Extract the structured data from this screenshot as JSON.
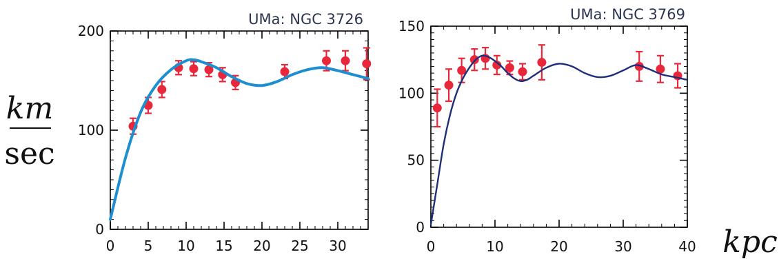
{
  "units": {
    "y_numerator": "km",
    "y_denominator": "sec",
    "x_unit": "kpc"
  },
  "colors": {
    "points": "#e8283a",
    "curve_left": "#1d8fd0",
    "curve_right": "#1e2f7a",
    "axes": "#000000"
  },
  "chart_data": [
    {
      "type": "scatter",
      "title": "UMa: NGC 3726",
      "xlabel": "",
      "ylabel": "",
      "xlim": [
        0,
        34
      ],
      "ylim": [
        0,
        200
      ],
      "xticks": [
        0,
        5,
        10,
        15,
        20,
        25,
        30
      ],
      "yticks": [
        0,
        100,
        200
      ],
      "grid": false,
      "series": [
        {
          "kind": "points_with_errorbars",
          "color": "#e8283a",
          "x": [
            3.0,
            5.0,
            6.8,
            9.0,
            11.0,
            13.0,
            14.8,
            16.5,
            23.0,
            28.5,
            31.0,
            33.8
          ],
          "y": [
            104,
            125,
            141,
            163,
            162,
            161,
            156,
            148,
            159,
            170,
            170,
            167
          ],
          "err": [
            8,
            8,
            8,
            7,
            7,
            7,
            7,
            7,
            7,
            10,
            10,
            16
          ]
        },
        {
          "kind": "curve",
          "color": "#1d8fd0",
          "x": [
            0,
            2,
            4,
            6,
            8,
            10,
            11,
            12,
            14,
            16,
            18,
            20,
            22,
            24,
            26,
            28,
            30,
            32,
            34
          ],
          "y": [
            10,
            72,
            118,
            145,
            161,
            170,
            171,
            169,
            163,
            154,
            147,
            145,
            149,
            156,
            161,
            163,
            160,
            156,
            152
          ]
        }
      ]
    },
    {
      "type": "scatter",
      "title": "UMa: NGC 3769",
      "xlabel": "",
      "ylabel": "",
      "xlim": [
        0,
        40
      ],
      "ylim": [
        0,
        150
      ],
      "xticks": [
        0,
        10,
        20,
        30,
        40
      ],
      "yticks": [
        0,
        50,
        100,
        150
      ],
      "grid": false,
      "series": [
        {
          "kind": "points_with_errorbars",
          "color": "#e8283a",
          "x": [
            1.0,
            2.8,
            4.8,
            6.8,
            8.5,
            10.3,
            12.3,
            14.3,
            17.3,
            32.5,
            35.8,
            38.5
          ],
          "y": [
            89,
            106,
            117,
            125,
            126,
            121,
            119,
            116,
            123,
            120,
            118,
            113
          ],
          "err": [
            14,
            12,
            9,
            8,
            8,
            7,
            5,
            6,
            13,
            11,
            10,
            9
          ]
        },
        {
          "kind": "curve",
          "color": "#1e2f7a",
          "x": [
            0,
            1,
            2,
            3,
            4,
            5,
            6,
            7,
            8,
            9,
            10,
            11,
            12,
            13,
            14,
            15,
            16,
            18,
            20,
            22,
            24,
            26,
            28,
            30,
            32,
            34,
            36,
            38,
            40
          ],
          "y": [
            2,
            32,
            62,
            84,
            100,
            111,
            119,
            125,
            128,
            127,
            124,
            120,
            115,
            111,
            109,
            110,
            113,
            119,
            122,
            120,
            115,
            112,
            113,
            117,
            121,
            118,
            114,
            112,
            110
          ]
        }
      ]
    }
  ]
}
